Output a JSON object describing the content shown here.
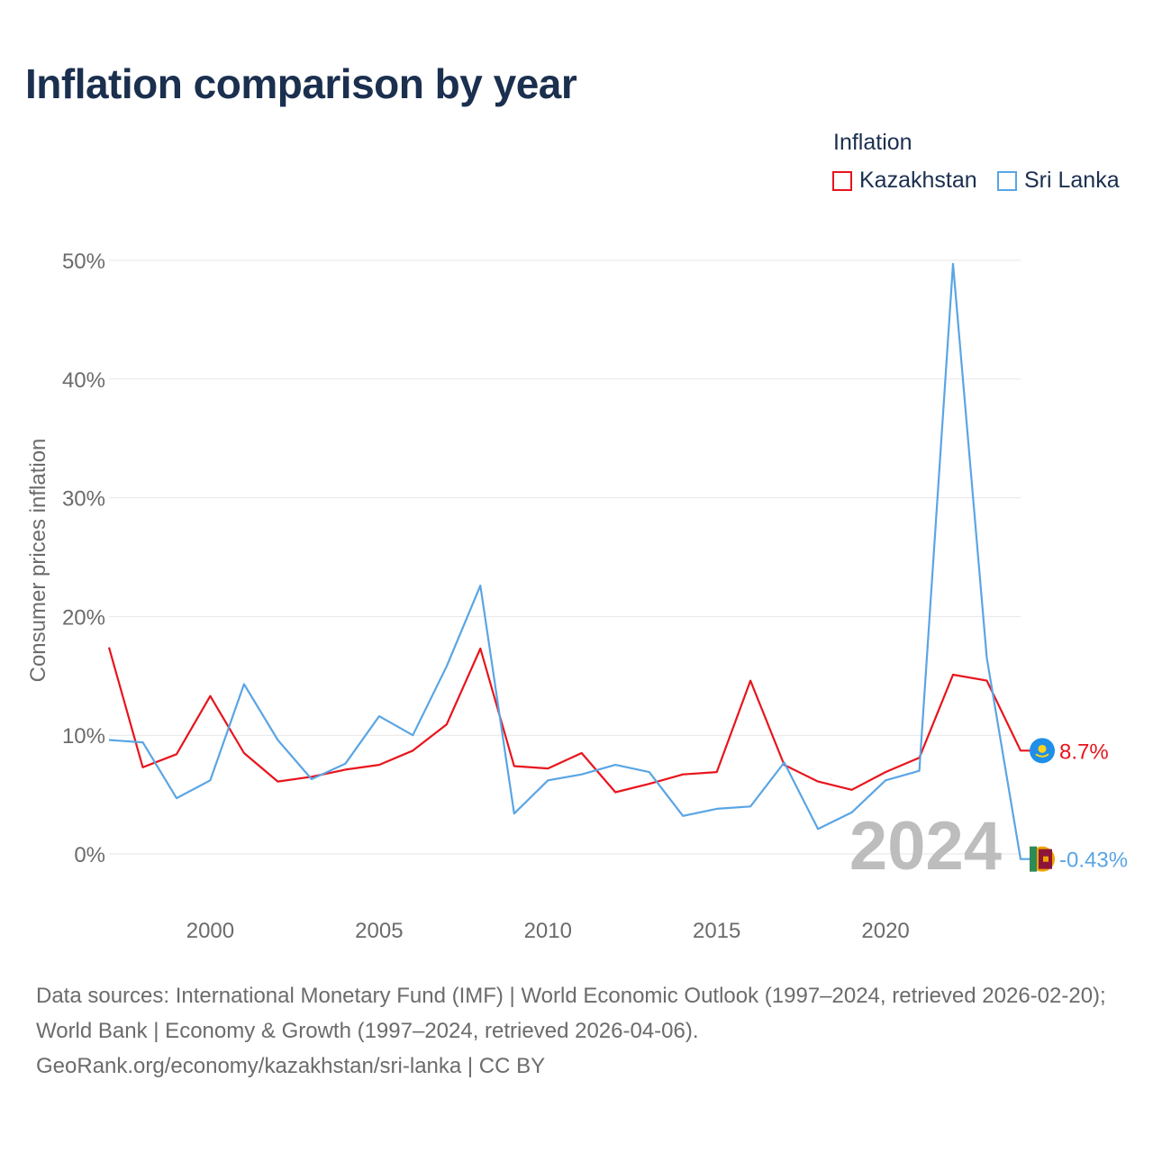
{
  "title": "Inflation comparison by year",
  "legend": {
    "title": "Inflation",
    "items": [
      {
        "label": "Kazakhstan",
        "color": "#e8141c"
      },
      {
        "label": "Sri Lanka",
        "color": "#5aa5e4"
      }
    ]
  },
  "chart_data": {
    "type": "line",
    "ylabel": "Consumer prices inflation",
    "xlabel": "",
    "ylim": [
      -5,
      50
    ],
    "xlim": [
      1997,
      2024
    ],
    "yticks": [
      0,
      10,
      20,
      30,
      40,
      50
    ],
    "ytick_labels": [
      "0%",
      "10%",
      "20%",
      "30%",
      "40%",
      "50%"
    ],
    "xticks": [
      2000,
      2005,
      2010,
      2015,
      2020
    ],
    "xtick_labels": [
      "2000",
      "2005",
      "2010",
      "2015",
      "2020"
    ],
    "year_watermark": "2024",
    "x": [
      1997,
      1998,
      1999,
      2000,
      2001,
      2002,
      2003,
      2004,
      2005,
      2006,
      2007,
      2008,
      2009,
      2010,
      2011,
      2012,
      2013,
      2014,
      2015,
      2016,
      2017,
      2018,
      2019,
      2020,
      2021,
      2022,
      2023,
      2024
    ],
    "series": [
      {
        "name": "Kazakhstan",
        "color": "#e8141c",
        "end_label": "8.7%",
        "values": [
          17.4,
          7.3,
          8.4,
          13.3,
          8.5,
          6.1,
          6.5,
          7.1,
          7.5,
          8.7,
          10.9,
          17.3,
          7.4,
          7.2,
          8.5,
          5.2,
          5.9,
          6.7,
          6.9,
          14.6,
          7.5,
          6.1,
          5.4,
          6.9,
          8.1,
          15.1,
          14.6,
          8.7
        ]
      },
      {
        "name": "Sri Lanka",
        "color": "#5aa5e4",
        "end_label": "-0.43%",
        "values": [
          9.6,
          9.4,
          4.7,
          6.2,
          14.3,
          9.6,
          6.3,
          7.6,
          11.6,
          10.0,
          15.8,
          22.6,
          3.4,
          6.2,
          6.7,
          7.5,
          6.9,
          3.2,
          3.8,
          4.0,
          7.7,
          2.1,
          3.5,
          6.2,
          7.0,
          49.7,
          16.5,
          -0.43
        ]
      }
    ]
  },
  "footer": {
    "source_line1": "Data sources: International Monetary Fund (IMF) | World Economic Outlook (1997–2024, retrieved 2026-02-20); World Bank | Economy & Growth (1997–2024, retrieved 2026-04-06).",
    "source_line2": "GeoRank.org/economy/kazakhstan/sri-lanka | CC BY"
  }
}
